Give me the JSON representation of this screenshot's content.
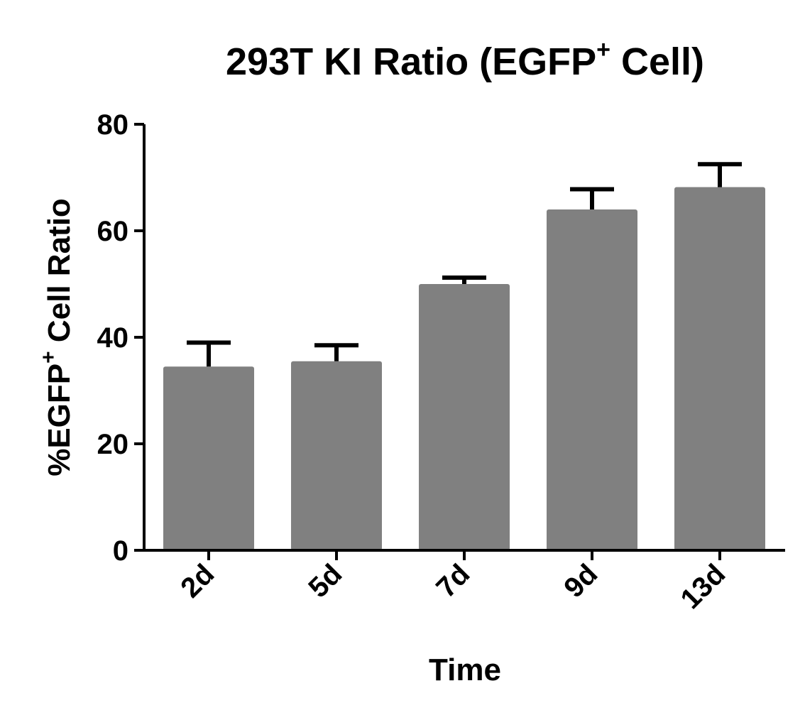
{
  "chart_data": {
    "type": "bar",
    "title": {
      "main": "293T KI Ratio (EGFP",
      "superscript": "+",
      "tail": " Cell)"
    },
    "xlabel": "Time",
    "ylabel": {
      "main": "%EGFP",
      "superscript": "+",
      "tail": " Cell Ratio"
    },
    "categories": [
      "2d",
      "5d",
      "7d",
      "9d",
      "13d"
    ],
    "values": [
      34.5,
      35.5,
      50.0,
      64.0,
      68.2
    ],
    "errors": [
      4.5,
      3.0,
      1.2,
      3.8,
      4.3
    ],
    "ylim": [
      0,
      80
    ],
    "yticks": [
      0,
      20,
      40,
      60,
      80
    ],
    "ytick_labels": [
      "0",
      "20",
      "40",
      "60",
      "80"
    ],
    "grid": false,
    "bar_color": "#808080",
    "error_bar_color": "#000000",
    "axis_color": "#000000"
  }
}
